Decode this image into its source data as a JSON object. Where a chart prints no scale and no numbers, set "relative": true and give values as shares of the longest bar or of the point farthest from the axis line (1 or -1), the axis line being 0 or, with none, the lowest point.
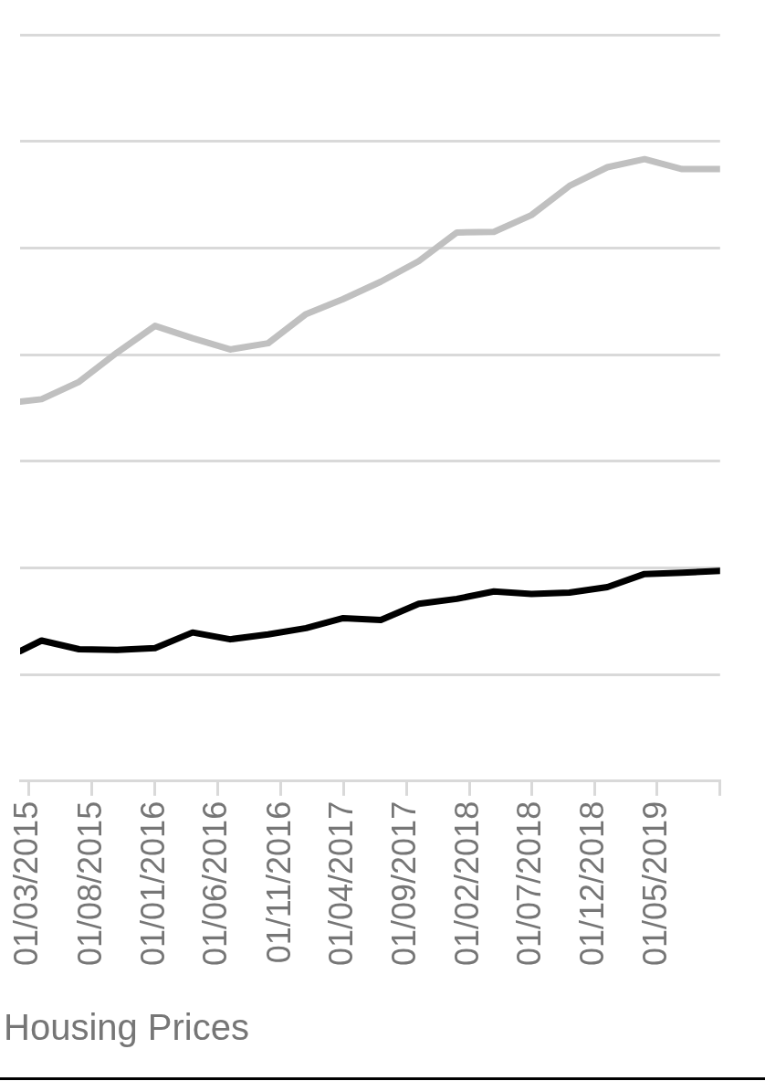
{
  "chart_data": {
    "type": "line",
    "relative": true,
    "grid": "y",
    "marker": "none",
    "line_style": "solid",
    "x": [
      "2015-02-08",
      "2015-04",
      "2015-07",
      "2015-10",
      "2016-01",
      "2016-04",
      "2016-07",
      "2016-10",
      "2017-01",
      "2017-04",
      "2017-07",
      "2017-10",
      "2018-01",
      "2018-04",
      "2018-07",
      "2018-10",
      "2019-01",
      "2019-04",
      "2019-07",
      "2019-10"
    ],
    "xlim": [
      "2015-02-08",
      "2019-10-01"
    ],
    "xticks": [
      {
        "value": "2015-03-01",
        "label": "01/03/2015"
      },
      {
        "value": "2015-08-01",
        "label": "01/08/2015"
      },
      {
        "value": "2016-01-01",
        "label": "01/01/2016"
      },
      {
        "value": "2016-06-01",
        "label": "01/06/2016"
      },
      {
        "value": "2016-11-01",
        "label": "01/11/2016"
      },
      {
        "value": "2017-04-01",
        "label": "01/04/2017"
      },
      {
        "value": "2017-09-01",
        "label": "01/09/2017"
      },
      {
        "value": "2018-02-01",
        "label": "01/02/2018"
      },
      {
        "value": "2018-07-01",
        "label": "01/07/2018"
      },
      {
        "value": "2018-12-01",
        "label": "01/12/2018"
      },
      {
        "value": "2019-05-01",
        "label": "01/05/2019"
      },
      {
        "value": "2019-10-01",
        "label": null
      }
    ],
    "series": [
      {
        "color": "#c0c0c0",
        "values": [
          0.61,
          0.614,
          0.642,
          0.689,
          0.732,
          0.712,
          0.694,
          0.704,
          0.751,
          0.775,
          0.803,
          0.836,
          0.882,
          0.883,
          0.91,
          0.957,
          0.987,
          1,
          0.984,
          0.984
        ]
      },
      {
        "color": "#000000",
        "values": [
          0.209,
          0.226,
          0.212,
          0.211,
          0.214,
          0.239,
          0.228,
          0.236,
          0.246,
          0.262,
          0.259,
          0.285,
          0.293,
          0.305,
          0.301,
          0.303,
          0.312,
          0.333,
          0.335,
          0.338
        ]
      }
    ],
    "annotations": [
      "Housing Prices"
    ]
  }
}
